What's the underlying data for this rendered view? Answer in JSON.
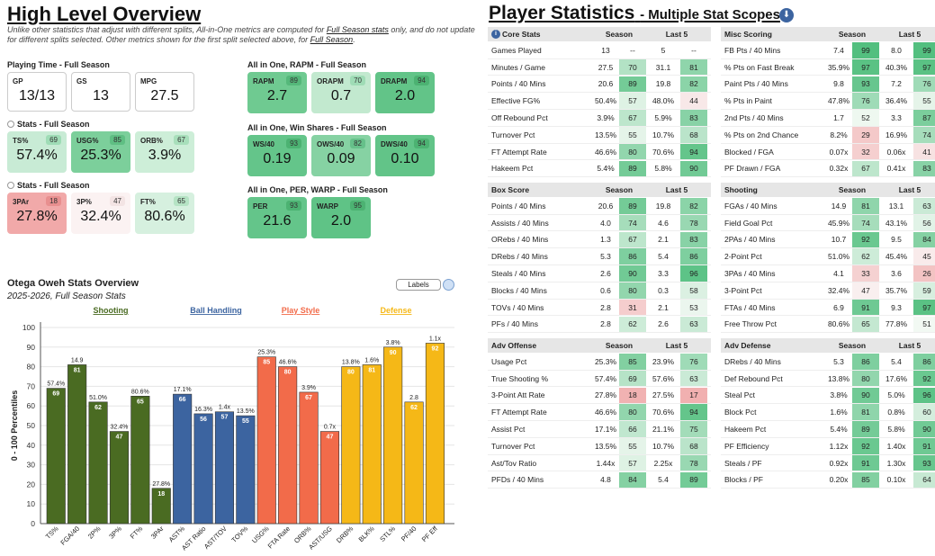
{
  "left": {
    "title": "High Level Overview",
    "note_a": "Unlike other statistics that adjust with different splits, All-in-One metrics are computed for ",
    "note_link": "Full Season stats",
    "note_b": " only, and do not update for different splits selected. Other metrics shown for the first split selected above, for ",
    "note_link2": "Full Season",
    "note_c": "."
  },
  "playing_time": {
    "label": "Playing Time - Full Season",
    "cards": [
      {
        "label": "GP",
        "value": "13/13"
      },
      {
        "label": "GS",
        "value": "13"
      },
      {
        "label": "MPG",
        "value": "27.5"
      }
    ]
  },
  "stats1": {
    "label": "Stats - Full Season",
    "cards": [
      {
        "label": "TS%",
        "value": "57.4%",
        "pct": "69",
        "color": "#c8ebd5",
        "pc": "#9fdcb6"
      },
      {
        "label": "USG%",
        "value": "25.3%",
        "pct": "85",
        "color": "#7ccf9b",
        "pc": "#5fbf83"
      },
      {
        "label": "ORB%",
        "value": "3.9%",
        "pct": "67",
        "color": "#cdeed8",
        "pc": "#a8dfbb"
      }
    ]
  },
  "stats2": {
    "label": "Stats - Full Season",
    "cards": [
      {
        "label": "3PAr",
        "value": "27.8%",
        "pct": "18",
        "color": "#f1a9a9",
        "pc": "#e88f8f"
      },
      {
        "label": "3P%",
        "value": "32.4%",
        "pct": "47",
        "color": "#fbf2f2",
        "pc": "#f3e4e4"
      },
      {
        "label": "FT%",
        "value": "80.6%",
        "pct": "65",
        "color": "#d6f0df",
        "pc": "#b5e3c4"
      }
    ]
  },
  "rapm": {
    "label": "All in One, RAPM - Full Season",
    "cards": [
      {
        "label": "RAPM",
        "value": "2.7",
        "pct": "89",
        "color": "#6fca91",
        "pc": "#55b87a"
      },
      {
        "label": "ORAPM",
        "value": "0.7",
        "pct": "70",
        "color": "#c2e9cf",
        "pc": "#9fdcb6"
      },
      {
        "label": "DRAPM",
        "value": "2.0",
        "pct": "94",
        "color": "#62c488",
        "pc": "#4cb272"
      }
    ]
  },
  "ws": {
    "label": "All in One, Win Shares - Full Season",
    "cards": [
      {
        "label": "WS/40",
        "value": "0.19",
        "pct": "93",
        "color": "#64c58a",
        "pc": "#4cb272"
      },
      {
        "label": "OWS/40",
        "value": "0.09",
        "pct": "82",
        "color": "#86d2a3",
        "pc": "#66c08a"
      },
      {
        "label": "DWS/40",
        "value": "0.10",
        "pct": "94",
        "color": "#62c488",
        "pc": "#4cb272"
      }
    ]
  },
  "per": {
    "label": "All in One, PER, WARP - Full Season",
    "cards": [
      {
        "label": "PER",
        "value": "21.6",
        "pct": "93",
        "color": "#64c58a",
        "pc": "#4cb272"
      },
      {
        "label": "WARP",
        "value": "2.0",
        "pct": "95",
        "color": "#5fc386",
        "pc": "#4cb272"
      }
    ]
  },
  "chart_data": {
    "type": "bar",
    "title": "Otega Oweh Stats Overview",
    "subtitle": "2025-2026, Full Season Stats",
    "ylabel": "0 - 100 Percentiles",
    "ylim": [
      0,
      100
    ],
    "yticks": [
      "0",
      "10",
      "20",
      "30",
      "40",
      "50",
      "60",
      "70",
      "80",
      "90",
      "100"
    ],
    "labels_button": "Labels",
    "groups": [
      {
        "name": "Shooting",
        "color": "#4a6b22"
      },
      {
        "name": "Ball Handling",
        "color": "#3c64a0"
      },
      {
        "name": "Play Style",
        "color": "#f26b4a"
      },
      {
        "name": "Defense",
        "color": "#f5b817"
      }
    ],
    "bars": [
      {
        "cat": "TS%",
        "value": 69,
        "label": "57.4%",
        "group": 0
      },
      {
        "cat": "FGA/40",
        "value": 81,
        "label": "14.9",
        "group": 0
      },
      {
        "cat": "2P%",
        "value": 62,
        "label": "51.0%",
        "group": 0
      },
      {
        "cat": "3P%",
        "value": 47,
        "label": "32.4%",
        "group": 0
      },
      {
        "cat": "FT%",
        "value": 65,
        "label": "80.6%",
        "group": 0
      },
      {
        "cat": "3PAr",
        "value": 18,
        "label": "27.8%",
        "group": 0
      },
      {
        "cat": "AST%",
        "value": 66,
        "label": "17.1%",
        "group": 1
      },
      {
        "cat": "AST Ratio",
        "value": 56,
        "label": "16.3%",
        "group": 1
      },
      {
        "cat": "AST/TOV",
        "value": 57,
        "label": "1.4x",
        "group": 1
      },
      {
        "cat": "TOV%",
        "value": 55,
        "label": "13.5%",
        "group": 1
      },
      {
        "cat": "USG%",
        "value": 85,
        "label": "25.3%",
        "group": 2
      },
      {
        "cat": "FTA Rate",
        "value": 80,
        "label": "46.6%",
        "group": 2
      },
      {
        "cat": "ORB%",
        "value": 67,
        "label": "3.9%",
        "group": 2
      },
      {
        "cat": "AST/USG",
        "value": 47,
        "label": "0.7x",
        "group": 2
      },
      {
        "cat": "DRB%",
        "value": 80,
        "label": "13.8%",
        "group": 3
      },
      {
        "cat": "BLK%",
        "value": 81,
        "label": "1.6%",
        "group": 3
      },
      {
        "cat": "STL%",
        "value": 90,
        "label": "3.8%",
        "group": 3
      },
      {
        "cat": "PF/40",
        "value": 62,
        "label": "2.8",
        "group": 3
      },
      {
        "cat": "PF Eff",
        "value": 92,
        "label": "1.1x",
        "group": 3
      }
    ]
  },
  "right": {
    "title": "Player Statistics",
    "subtitle": "- Multiple Stat Scopes",
    "col_season": "Season",
    "col_last5": "Last 5"
  },
  "tables": [
    {
      "title": "Core Stats",
      "rows": [
        [
          "Games Played",
          "13",
          "--",
          "5",
          "--"
        ],
        [
          "Minutes / Game",
          "27.5",
          "70",
          "31.1",
          "81"
        ],
        [
          "Points / 40 Mins",
          "20.6",
          "89",
          "19.8",
          "82"
        ],
        [
          "Effective FG%",
          "50.4%",
          "57",
          "48.0%",
          "44"
        ],
        [
          "Off Rebound Pct",
          "3.9%",
          "67",
          "5.9%",
          "83"
        ],
        [
          "Turnover Pct",
          "13.5%",
          "55",
          "10.7%",
          "68"
        ],
        [
          "FT Attempt Rate",
          "46.6%",
          "80",
          "70.6%",
          "94"
        ],
        [
          "Hakeem Pct",
          "5.4%",
          "89",
          "5.8%",
          "90"
        ]
      ]
    },
    {
      "title": "Misc Scoring",
      "rows": [
        [
          "FB Pts / 40 Mins",
          "7.4",
          "99",
          "8.0",
          "99"
        ],
        [
          "% Pts on Fast Break",
          "35.9%",
          "97",
          "40.3%",
          "97"
        ],
        [
          "Paint Pts / 40 Mins",
          "9.8",
          "93",
          "7.2",
          "76"
        ],
        [
          "% Pts in Paint",
          "47.8%",
          "76",
          "36.4%",
          "55"
        ],
        [
          "2nd Pts / 40 Mins",
          "1.7",
          "52",
          "3.3",
          "87"
        ],
        [
          "% Pts on 2nd Chance",
          "8.2%",
          "29",
          "16.9%",
          "74"
        ],
        [
          "Blocked / FGA",
          "0.07x",
          "32",
          "0.06x",
          "41"
        ],
        [
          "PF Drawn / FGA",
          "0.32x",
          "67",
          "0.41x",
          "83"
        ]
      ]
    },
    {
      "title": "Box Score",
      "rows": [
        [
          "Points / 40 Mins",
          "20.6",
          "89",
          "19.8",
          "82"
        ],
        [
          "Assists / 40 Mins",
          "4.0",
          "74",
          "4.6",
          "78"
        ],
        [
          "ORebs / 40 Mins",
          "1.3",
          "67",
          "2.1",
          "83"
        ],
        [
          "DRebs / 40 Mins",
          "5.3",
          "86",
          "5.4",
          "86"
        ],
        [
          "Steals / 40 Mins",
          "2.6",
          "90",
          "3.3",
          "96"
        ],
        [
          "Blocks / 40 Mins",
          "0.6",
          "80",
          "0.3",
          "58"
        ],
        [
          "TOVs / 40 Mins",
          "2.8",
          "31",
          "2.1",
          "53"
        ],
        [
          "PFs / 40 Mins",
          "2.8",
          "62",
          "2.6",
          "63"
        ]
      ]
    },
    {
      "title": "Shooting",
      "rows": [
        [
          "FGAs / 40 Mins",
          "14.9",
          "81",
          "13.1",
          "63"
        ],
        [
          "Field Goal Pct",
          "45.9%",
          "74",
          "43.1%",
          "56"
        ],
        [
          "2PAs / 40 Mins",
          "10.7",
          "92",
          "9.5",
          "84"
        ],
        [
          "2-Point Pct",
          "51.0%",
          "62",
          "45.4%",
          "45"
        ],
        [
          "3PAs / 40 Mins",
          "4.1",
          "33",
          "3.6",
          "26"
        ],
        [
          "3-Point Pct",
          "32.4%",
          "47",
          "35.7%",
          "59"
        ],
        [
          "FTAs / 40 Mins",
          "6.9",
          "91",
          "9.3",
          "97"
        ],
        [
          "Free Throw Pct",
          "80.6%",
          "65",
          "77.8%",
          "51"
        ]
      ]
    },
    {
      "title": "Adv Offense",
      "rows": [
        [
          "Usage Pct",
          "25.3%",
          "85",
          "23.9%",
          "76"
        ],
        [
          "True Shooting %",
          "57.4%",
          "69",
          "57.6%",
          "63"
        ],
        [
          "3-Point Att Rate",
          "27.8%",
          "18",
          "27.5%",
          "17"
        ],
        [
          "FT Attempt Rate",
          "46.6%",
          "80",
          "70.6%",
          "94"
        ],
        [
          "Assist Pct",
          "17.1%",
          "66",
          "21.1%",
          "75"
        ],
        [
          "Turnover Pct",
          "13.5%",
          "55",
          "10.7%",
          "68"
        ],
        [
          "Ast/Tov Ratio",
          "1.44x",
          "57",
          "2.25x",
          "78"
        ],
        [
          "PFDs / 40 Mins",
          "4.8",
          "84",
          "5.4",
          "89"
        ]
      ]
    },
    {
      "title": "Adv Defense",
      "rows": [
        [
          "DRebs / 40 Mins",
          "5.3",
          "86",
          "5.4",
          "86"
        ],
        [
          "Def Rebound Pct",
          "13.8%",
          "80",
          "17.6%",
          "92"
        ],
        [
          "Steal Pct",
          "3.8%",
          "90",
          "5.0%",
          "96"
        ],
        [
          "Block Pct",
          "1.6%",
          "81",
          "0.8%",
          "60"
        ],
        [
          "Hakeem Pct",
          "5.4%",
          "89",
          "5.8%",
          "90"
        ],
        [
          "PF Efficiency",
          "1.12x",
          "92",
          "1.40x",
          "91"
        ],
        [
          "Steals / PF",
          "0.92x",
          "91",
          "1.30x",
          "93"
        ],
        [
          "Blocks / PF",
          "0.20x",
          "85",
          "0.10x",
          "64"
        ]
      ]
    }
  ]
}
